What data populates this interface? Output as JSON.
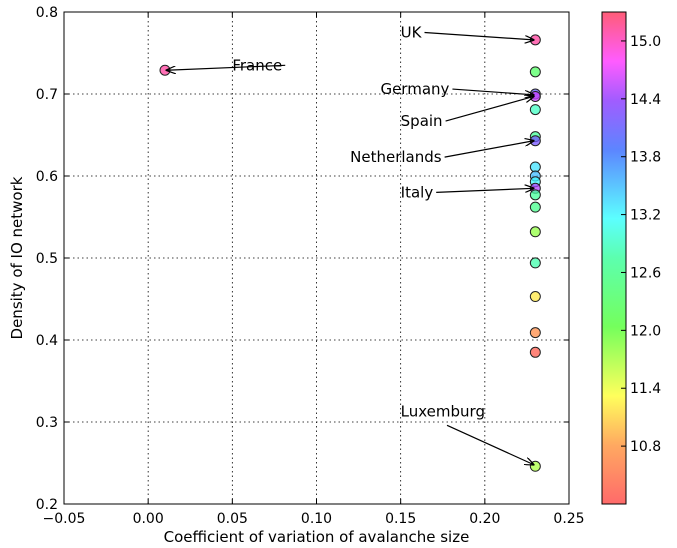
{
  "chart_data": {
    "type": "scatter",
    "xlabel": "Coefficient of variation of avalanche size",
    "ylabel": "Density of IO network",
    "xlim": [
      -0.05,
      0.25
    ],
    "ylim": [
      0.2,
      0.8
    ],
    "x_ticks": [
      "−0.05",
      "0.00",
      "0.05",
      "0.10",
      "0.15",
      "0.20",
      "0.25"
    ],
    "y_ticks": [
      "0.2",
      "0.3",
      "0.4",
      "0.5",
      "0.6",
      "0.7",
      "0.8"
    ],
    "grid": true,
    "colorbar": {
      "range": [
        10.2,
        15.3
      ],
      "ticks": [
        "10.8",
        "11.4",
        "12.0",
        "12.6",
        "13.2",
        "13.8",
        "14.4",
        "15.0"
      ]
    },
    "points": [
      {
        "x": 0.01,
        "y": 0.729,
        "c": 15.1
      },
      {
        "x": 0.23,
        "y": 0.766,
        "c": 15.1
      },
      {
        "x": 0.23,
        "y": 0.727,
        "c": 12.3
      },
      {
        "x": 0.23,
        "y": 0.7,
        "c": 14.1
      },
      {
        "x": 0.23,
        "y": 0.697,
        "c": 14.6
      },
      {
        "x": 0.23,
        "y": 0.681,
        "c": 12.9
      },
      {
        "x": 0.23,
        "y": 0.648,
        "c": 12.7
      },
      {
        "x": 0.23,
        "y": 0.643,
        "c": 14.2
      },
      {
        "x": 0.23,
        "y": 0.611,
        "c": 13.3
      },
      {
        "x": 0.23,
        "y": 0.6,
        "c": 13.5
      },
      {
        "x": 0.23,
        "y": 0.593,
        "c": 13.2
      },
      {
        "x": 0.23,
        "y": 0.585,
        "c": 14.5
      },
      {
        "x": 0.23,
        "y": 0.577,
        "c": 12.7
      },
      {
        "x": 0.23,
        "y": 0.562,
        "c": 12.6
      },
      {
        "x": 0.23,
        "y": 0.532,
        "c": 11.8
      },
      {
        "x": 0.23,
        "y": 0.494,
        "c": 12.8
      },
      {
        "x": 0.23,
        "y": 0.453,
        "c": 11.2
      },
      {
        "x": 0.23,
        "y": 0.409,
        "c": 10.7
      },
      {
        "x": 0.23,
        "y": 0.385,
        "c": 10.3
      },
      {
        "x": 0.23,
        "y": 0.246,
        "c": 11.7
      }
    ],
    "annotations": [
      {
        "text": "France",
        "text_x": 0.05,
        "text_y": 0.735,
        "target_x": 0.011,
        "target_y": 0.729
      },
      {
        "text": "UK",
        "text_x": 0.15,
        "text_y": 0.775,
        "target_x": 0.229,
        "target_y": 0.766
      },
      {
        "text": "Germany",
        "text_x": 0.138,
        "text_y": 0.706,
        "target_x": 0.229,
        "target_y": 0.699
      },
      {
        "text": "Spain",
        "text_x": 0.15,
        "text_y": 0.667,
        "target_x": 0.229,
        "target_y": 0.697
      },
      {
        "text": "Netherlands",
        "text_x": 0.12,
        "text_y": 0.623,
        "target_x": 0.229,
        "target_y": 0.643
      },
      {
        "text": "Italy",
        "text_x": 0.15,
        "text_y": 0.58,
        "target_x": 0.229,
        "target_y": 0.585
      },
      {
        "text": "Luxemburg",
        "text_x": 0.15,
        "text_y": 0.313,
        "target_x": 0.229,
        "target_y": 0.248
      }
    ]
  }
}
